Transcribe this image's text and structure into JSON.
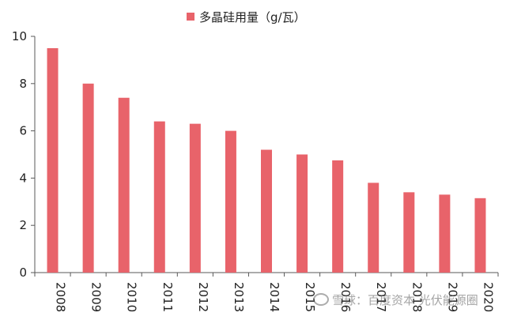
{
  "chart_data": {
    "type": "bar",
    "categories": [
      "2008",
      "2009",
      "2010",
      "2011",
      "2012",
      "2013",
      "2014",
      "2015",
      "2016",
      "2017",
      "2018",
      "2019",
      "2020"
    ],
    "series": [
      {
        "name": "多晶硅用量（g/瓦）",
        "values": [
          9.5,
          8.0,
          7.4,
          6.4,
          6.3,
          6.0,
          5.2,
          5.0,
          4.75,
          3.8,
          3.4,
          3.3,
          3.15
        ]
      }
    ],
    "ylim": [
      0,
      10
    ],
    "yticks": [
      "0",
      "2",
      "4",
      "6",
      "8",
      "10"
    ],
    "grid": false,
    "legend_position": "top",
    "bar_color": "#e8636a",
    "axis_color": "#595959"
  },
  "legend": {
    "label": "多晶硅用量（g/瓦）"
  },
  "watermark": {
    "text": "雪球：百度资本  光伏能源圈"
  }
}
